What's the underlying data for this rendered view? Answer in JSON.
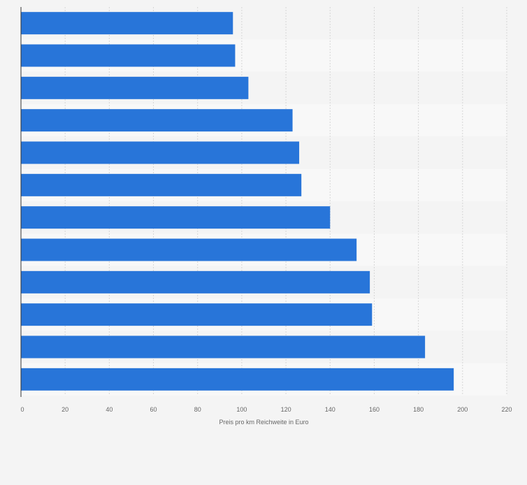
{
  "chart_data": {
    "type": "bar",
    "orientation": "horizontal",
    "categories": [
      "",
      "",
      "",
      "",
      "",
      "",
      "",
      "",
      "",
      "",
      "",
      ""
    ],
    "values": [
      96,
      97,
      103,
      123,
      126,
      127,
      140,
      152,
      158,
      159,
      183,
      196
    ],
    "title": "",
    "xlabel": "Preis pro km Reichweite in Euro",
    "ylabel": "",
    "xlim": [
      0,
      220
    ],
    "xticks": [
      "0",
      "20",
      "40",
      "60",
      "80",
      "100",
      "120",
      "140",
      "160",
      "180",
      "200",
      "220"
    ],
    "grid": true,
    "legend": "none",
    "bar_color": "#2875d9",
    "band_colors": [
      "#f4f4f4",
      "#f8f8f8"
    ]
  }
}
